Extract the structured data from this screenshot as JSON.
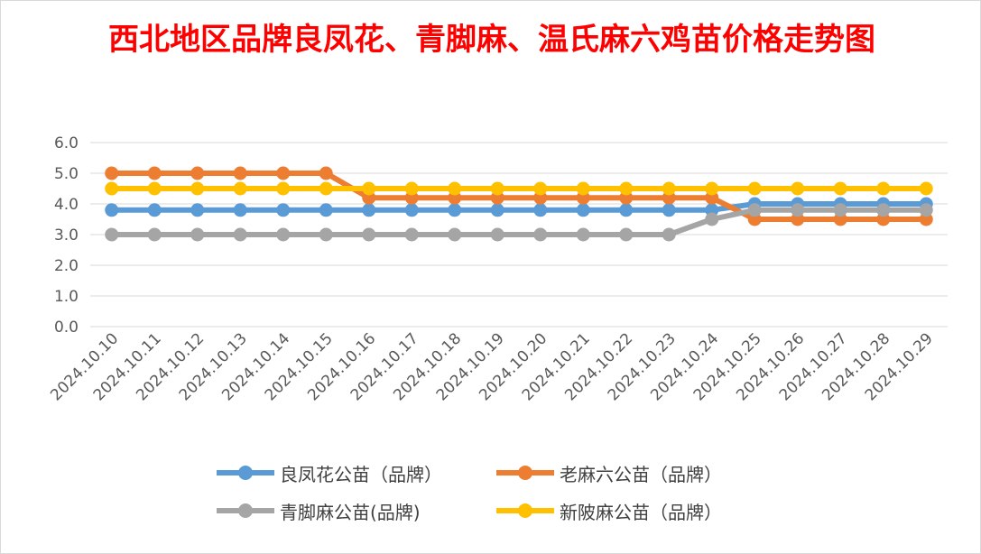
{
  "chart_data": {
    "type": "line",
    "title": "西北地区品牌良凤花、青脚麻、温氏麻六鸡苗价格走势图",
    "title_color": "#ff0000",
    "categories": [
      "2024.10.10",
      "2024.10.11",
      "2024.10.12",
      "2024.10.13",
      "2024.10.14",
      "2024.10.15",
      "2024.10.16",
      "2024.10.17",
      "2024.10.18",
      "2024.10.19",
      "2024.10.20",
      "2024.10.21",
      "2024.10.22",
      "2024.10.23",
      "2024.10.24",
      "2024.10.25",
      "2024.10.26",
      "2024.10.27",
      "2024.10.28",
      "2024.10.29"
    ],
    "ylim": [
      0,
      6
    ],
    "yticks": [
      "0.0",
      "1.0",
      "2.0",
      "3.0",
      "4.0",
      "5.0",
      "6.0"
    ],
    "grid": true,
    "legend_position": "bottom",
    "series": [
      {
        "name": "良凤花公苗（品牌）",
        "color": "#5b9bd5",
        "values": [
          3.8,
          3.8,
          3.8,
          3.8,
          3.8,
          3.8,
          3.8,
          3.8,
          3.8,
          3.8,
          3.8,
          3.8,
          3.8,
          3.8,
          3.8,
          4.0,
          4.0,
          4.0,
          4.0,
          4.0
        ]
      },
      {
        "name": "老麻六公苗（品牌）",
        "color": "#ed7d31",
        "values": [
          5.0,
          5.0,
          5.0,
          5.0,
          5.0,
          5.0,
          4.2,
          4.2,
          4.2,
          4.2,
          4.2,
          4.2,
          4.2,
          4.2,
          4.2,
          3.5,
          3.5,
          3.5,
          3.5,
          3.5
        ]
      },
      {
        "name": "青脚麻公苗(品牌)",
        "color": "#a5a5a5",
        "values": [
          3.0,
          3.0,
          3.0,
          3.0,
          3.0,
          3.0,
          3.0,
          3.0,
          3.0,
          3.0,
          3.0,
          3.0,
          3.0,
          3.0,
          3.5,
          3.8,
          3.8,
          3.8,
          3.8,
          3.8
        ]
      },
      {
        "name": "新陂麻公苗（品牌）",
        "color": "#ffc000",
        "values": [
          4.5,
          4.5,
          4.5,
          4.5,
          4.5,
          4.5,
          4.5,
          4.5,
          4.5,
          4.5,
          4.5,
          4.5,
          4.5,
          4.5,
          4.5,
          4.5,
          4.5,
          4.5,
          4.5,
          4.5
        ]
      }
    ]
  }
}
